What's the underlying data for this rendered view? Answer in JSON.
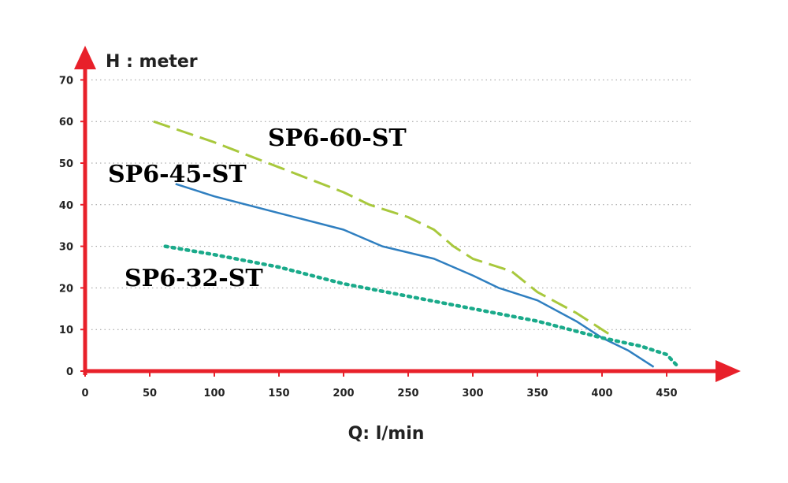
{
  "chart_data": {
    "type": "line",
    "ylabel": "H : meter",
    "xlabel": "Q: l/min",
    "xlim": [
      0,
      460
    ],
    "ylim": [
      0,
      70
    ],
    "x_ticks": [
      0,
      50,
      100,
      150,
      200,
      250,
      300,
      350,
      400,
      450
    ],
    "y_ticks": [
      0,
      10,
      20,
      30,
      40,
      50,
      60,
      70
    ],
    "grid": "horizontal dotted",
    "series": [
      {
        "name": "SP6-60-ST",
        "color": "#a8c83c",
        "style": "dashed",
        "x": [
          53,
          100,
          150,
          200,
          220,
          250,
          270,
          285,
          300,
          320,
          330,
          350,
          380,
          405
        ],
        "y": [
          60,
          55,
          49,
          43,
          40,
          37,
          34,
          30,
          27,
          25,
          24,
          19,
          14,
          9
        ]
      },
      {
        "name": "SP6-45-ST",
        "color": "#2f7fc0",
        "style": "solid",
        "x": [
          70,
          100,
          150,
          200,
          230,
          270,
          300,
          320,
          350,
          380,
          400,
          420,
          440
        ],
        "y": [
          45,
          42,
          38,
          34,
          30,
          27,
          23,
          20,
          17,
          12,
          8,
          5,
          1
        ]
      },
      {
        "name": "SP6-32-ST",
        "color": "#1aaa8a",
        "style": "dotted",
        "x": [
          62,
          100,
          150,
          200,
          250,
          300,
          350,
          400,
          430,
          450,
          459
        ],
        "y": [
          30,
          28,
          25,
          21,
          18,
          15,
          12,
          8,
          6,
          4,
          1
        ]
      }
    ]
  }
}
